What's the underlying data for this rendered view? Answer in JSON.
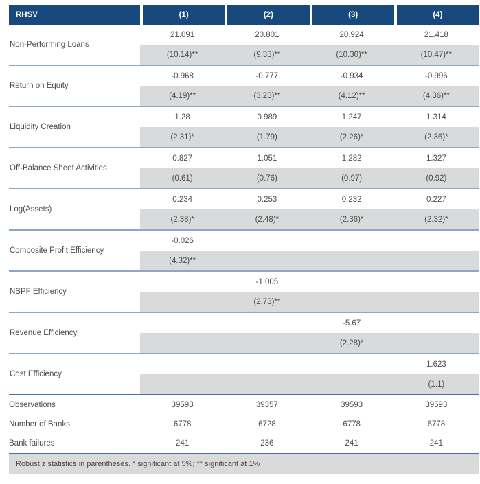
{
  "header": {
    "label": "RHSV",
    "columns": [
      "(1)",
      "(2)",
      "(3)",
      "(4)"
    ]
  },
  "groups": [
    {
      "label": "Non-Performing Loans",
      "values": [
        "21.091",
        "20.801",
        "20.924",
        "21.418"
      ],
      "tstats": [
        "(10.14)**",
        "(9.33)**",
        "(10.30)**",
        "(10.47)**"
      ]
    },
    {
      "label": "Return on Equity",
      "values": [
        "-0.968",
        "-0.777",
        "-0.934",
        "-0.996"
      ],
      "tstats": [
        "(4.19)**",
        "(3.23)**",
        "(4.12)**",
        "(4.36)**"
      ]
    },
    {
      "label": "Liquidity Creation",
      "values": [
        "1.28",
        "0.989",
        "1.247",
        "1.314"
      ],
      "tstats": [
        "(2.31)*",
        "(1.79)",
        "(2.26)*",
        "(2.36)*"
      ]
    },
    {
      "label": "Off-Balance Sheet Activities",
      "values": [
        "0.827",
        "1.051",
        "1.282",
        "1.327"
      ],
      "tstats": [
        "(0.61)",
        "(0.76)",
        "(0.97)",
        "(0.92)"
      ]
    },
    {
      "label": "Log(Assets)",
      "values": [
        "0.234",
        "0.253",
        "0.232",
        "0.227"
      ],
      "tstats": [
        "(2.38)*",
        "(2.48)*",
        "(2.36)*",
        "(2.32)*"
      ]
    },
    {
      "label": "Composite Profit Efficiency",
      "values": [
        "-0.026",
        "",
        "",
        ""
      ],
      "tstats": [
        "(4.32)**",
        "",
        "",
        ""
      ]
    },
    {
      "label": "NSPF Efficiency",
      "values": [
        "",
        "-1.005",
        "",
        ""
      ],
      "tstats": [
        "",
        "(2.73)**",
        "",
        ""
      ]
    },
    {
      "label": "Revenue Efficiency",
      "values": [
        "",
        "",
        "-5.67",
        ""
      ],
      "tstats": [
        "",
        "",
        "(2.28)*",
        ""
      ]
    },
    {
      "label": "Cost Efficiency",
      "values": [
        "",
        "",
        "",
        "1.623"
      ],
      "tstats": [
        "",
        "",
        "",
        "(1.1)"
      ]
    }
  ],
  "summary_rows": [
    {
      "label": "Observations",
      "values": [
        "39593",
        "39357",
        "39593",
        "39593"
      ]
    },
    {
      "label": "Number of Banks",
      "values": [
        "6778",
        "6728",
        "6778",
        "6778"
      ]
    },
    {
      "label": "Bank failures",
      "values": [
        "241",
        "236",
        "241",
        "241"
      ]
    }
  ],
  "footnote": "Robust z statistics in parentheses. * significant at 5%; ** significant at 1%",
  "colors": {
    "header_bg": "#17497d",
    "band_gray": "#d9dadb",
    "group_divider": "#8ea7c5",
    "section_line": "#46739f",
    "text": "#4c4c4c",
    "header_text": "#ffffff"
  }
}
